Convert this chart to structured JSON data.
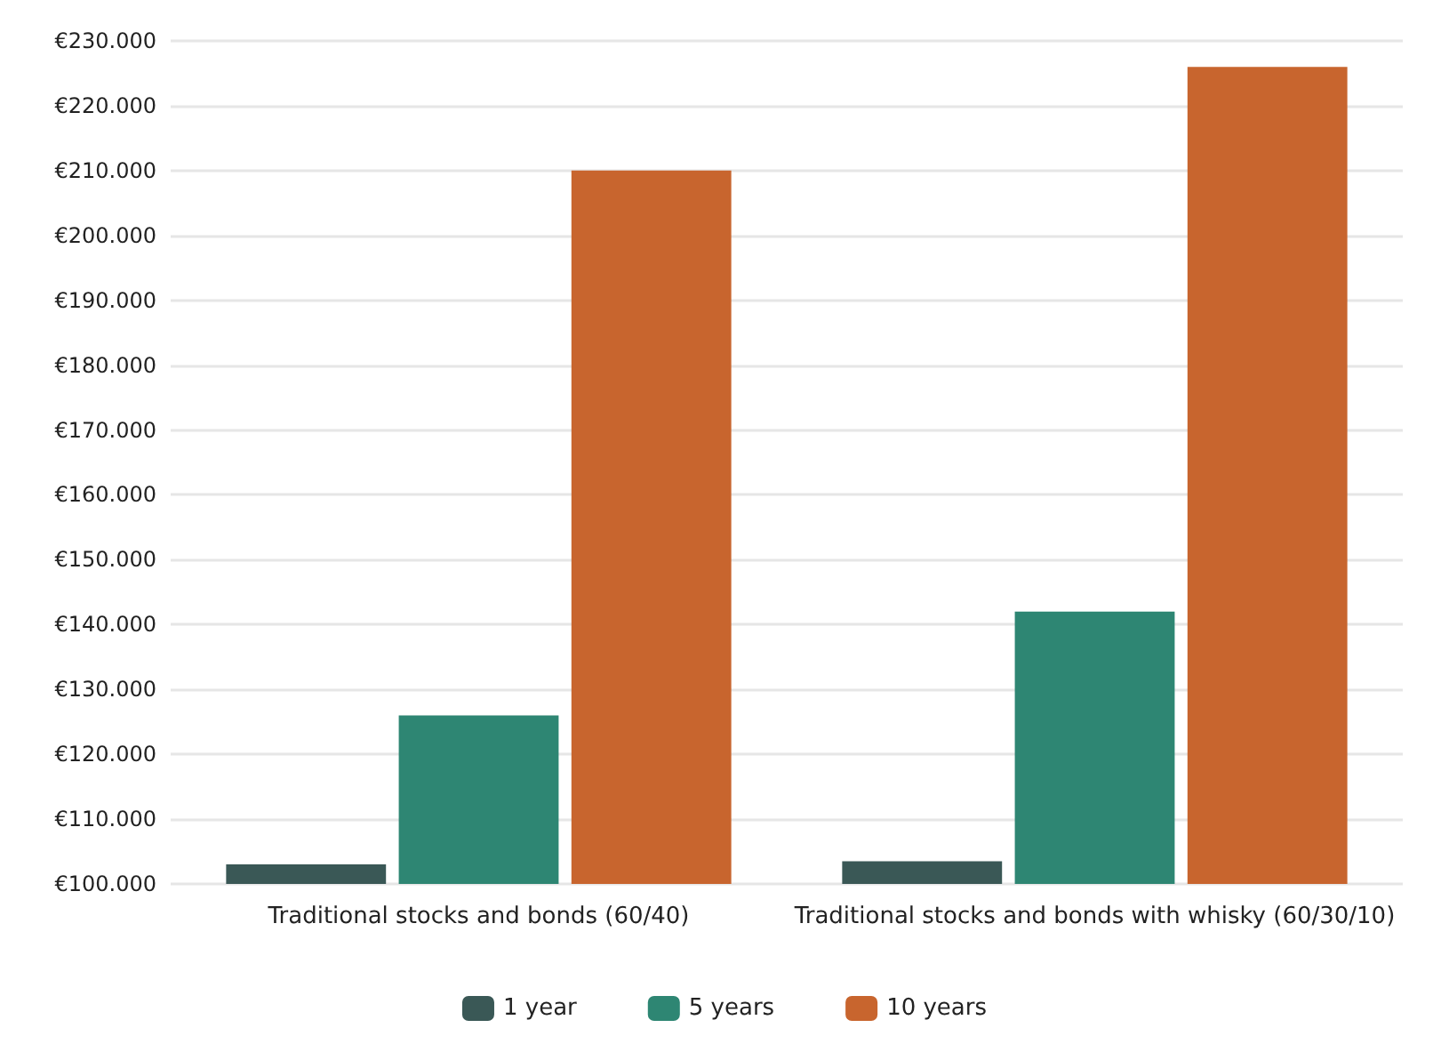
{
  "chart_data": {
    "type": "bar",
    "categories": [
      "Traditional stocks and bonds (60/40)",
      "Traditional stocks and bonds with whisky (60/30/10)"
    ],
    "series": [
      {
        "name": "1 year",
        "color": "#3a5856",
        "values": [
          103000,
          103500
        ]
      },
      {
        "name": "5 years",
        "color": "#2e8673",
        "values": [
          126000,
          142000
        ]
      },
      {
        "name": "10 years",
        "color": "#c8652e",
        "values": [
          210000,
          226000
        ]
      }
    ],
    "ylim": [
      100000,
      230000
    ],
    "yticks": [
      {
        "value": 100000,
        "label": "€100.000"
      },
      {
        "value": 110000,
        "label": "€110.000"
      },
      {
        "value": 120000,
        "label": "€120.000"
      },
      {
        "value": 130000,
        "label": "€130.000"
      },
      {
        "value": 140000,
        "label": "€140.000"
      },
      {
        "value": 150000,
        "label": "€150.000"
      },
      {
        "value": 160000,
        "label": "€160.000"
      },
      {
        "value": 170000,
        "label": "€170.000"
      },
      {
        "value": 180000,
        "label": "€180.000"
      },
      {
        "value": 190000,
        "label": "€190.000"
      },
      {
        "value": 200000,
        "label": "€200.000"
      },
      {
        "value": 210000,
        "label": "€210.000"
      },
      {
        "value": 220000,
        "label": "€220.000"
      },
      {
        "value": 230000,
        "label": "€230.000"
      }
    ],
    "grid": "y",
    "legend": "bottom"
  }
}
